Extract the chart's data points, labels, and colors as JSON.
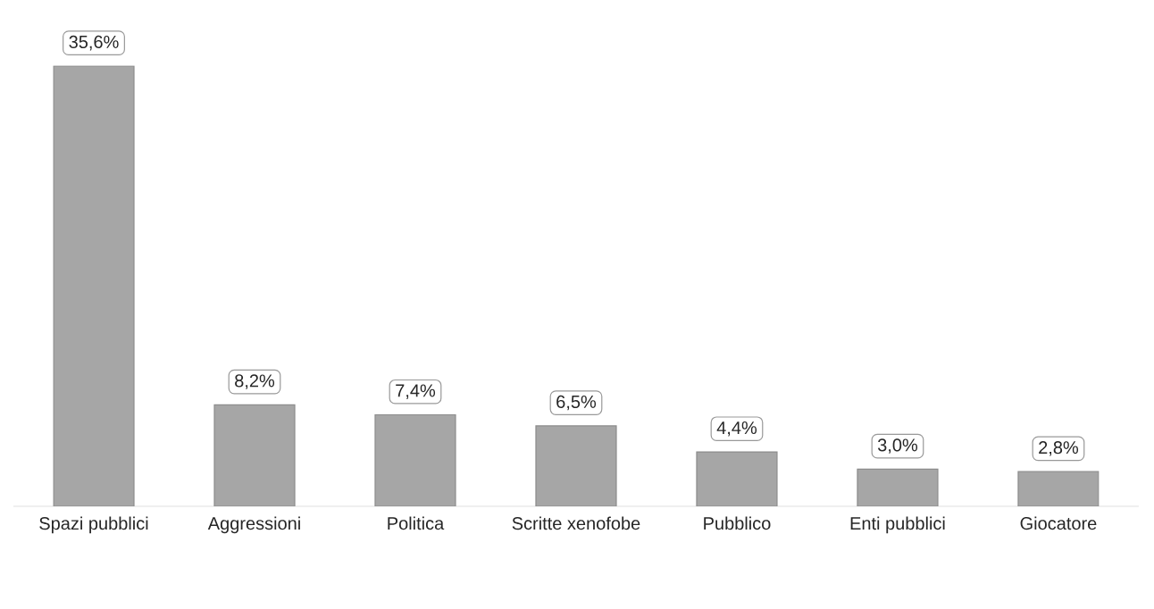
{
  "chart_data": {
    "type": "bar",
    "categories": [
      "Spazi pubblici",
      "Aggressioni",
      "Politica",
      "Scritte xenofobe",
      "Pubblico",
      "Enti pubblici",
      "Giocatore"
    ],
    "values": [
      35.6,
      8.2,
      7.4,
      6.5,
      4.4,
      3.0,
      2.8
    ],
    "value_labels": [
      "35,6%",
      "8,2%",
      "7,4%",
      "6,5%",
      "4,4%",
      "3,0%",
      "2,8%"
    ],
    "color": "#a6a6a6"
  }
}
